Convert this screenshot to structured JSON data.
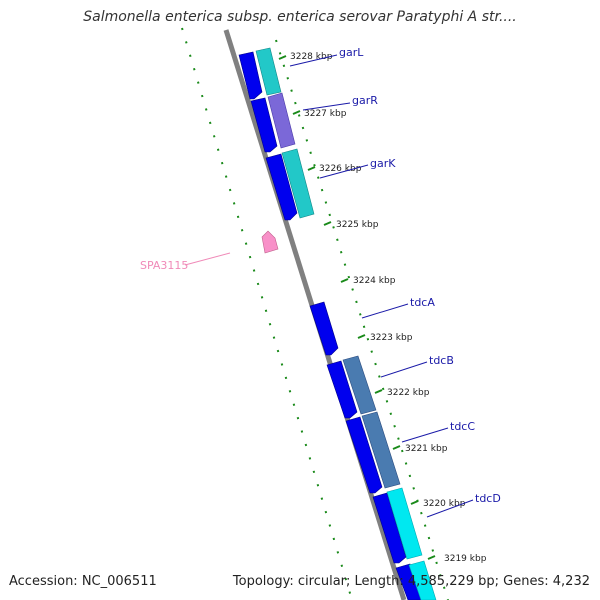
{
  "title": "Salmonella enterica subsp. enterica serovar Paratyphi A str....",
  "footer": {
    "accession": "Accession: NC_006511",
    "summary": "Topology: circular; Length: 4,585,229 bp; Genes: 4,232"
  },
  "colors": {
    "backbone": "#808080",
    "forward_gene": "#0000ee",
    "gene_cyan": "#22c8c8",
    "gene_purple": "#7b68d8",
    "gene_steel": "#4a7bb0",
    "gene_aqua": "#00e8f0",
    "reverse_gene": "#f890c8",
    "tick_green": "#1a8a1a",
    "label_blue": "#1a1aa8",
    "label_pink": "#f08ab8"
  },
  "scale_ticks": [
    {
      "label": "3228 kbp"
    },
    {
      "label": "3227 kbp"
    },
    {
      "label": "3226 kbp"
    },
    {
      "label": "3225 kbp"
    },
    {
      "label": "3224 kbp"
    },
    {
      "label": "3223 kbp"
    },
    {
      "label": "3222 kbp"
    },
    {
      "label": "3221 kbp"
    },
    {
      "label": "3220 kbp"
    },
    {
      "label": "3219 kbp"
    }
  ],
  "gene_labels": [
    {
      "name": "garL"
    },
    {
      "name": "garR"
    },
    {
      "name": "garK"
    },
    {
      "name": "tdcA"
    },
    {
      "name": "tdcB"
    },
    {
      "name": "tdcC"
    },
    {
      "name": "tdcD"
    },
    {
      "name": "SPA3115"
    }
  ]
}
